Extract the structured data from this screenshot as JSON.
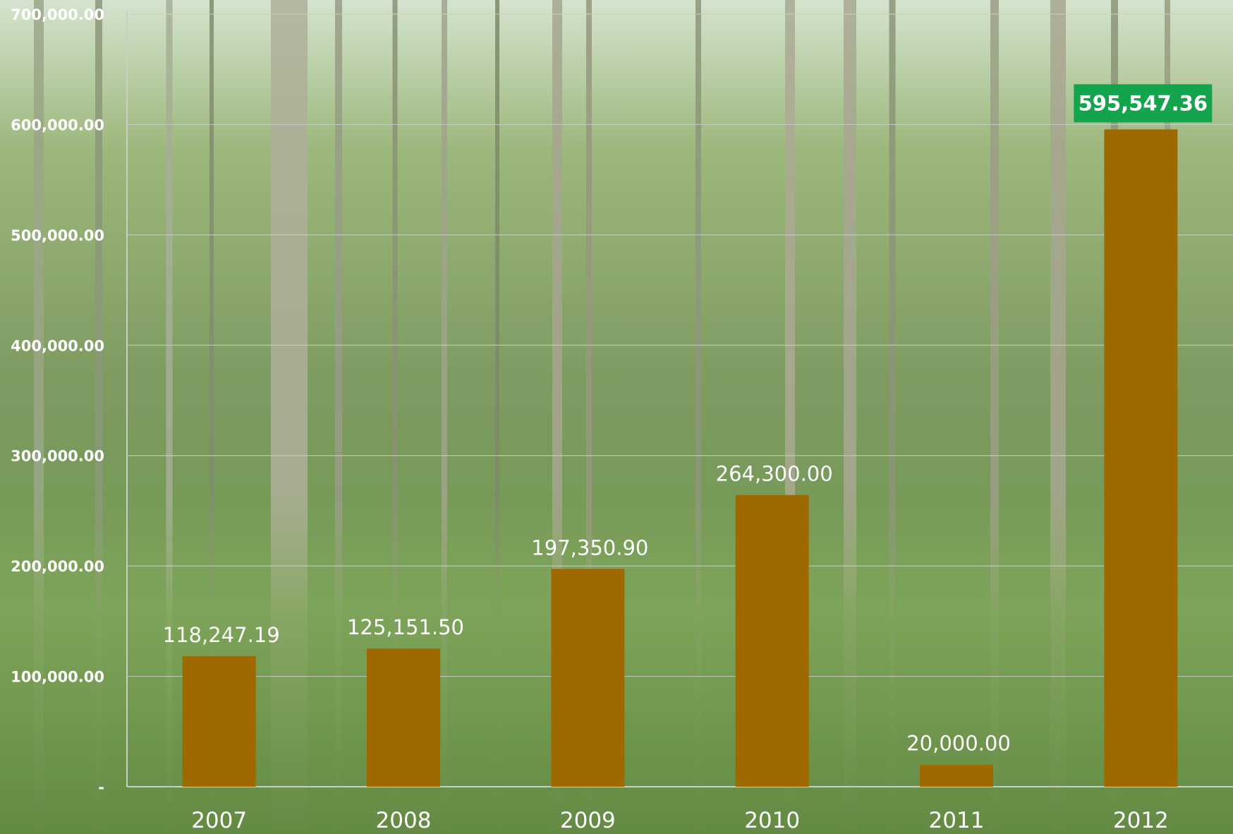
{
  "colors": {
    "bar": "#9E6A00",
    "highlight_label_bg": "#14A44D",
    "text": "#FFFFFF",
    "grid": "#C9CFC4"
  },
  "chart_data": {
    "type": "bar",
    "categories": [
      "2007",
      "2008",
      "2009",
      "2010",
      "2011",
      "2012"
    ],
    "values": [
      118247.19,
      125151.5,
      197350.9,
      264300.0,
      20000.0,
      595547.36
    ],
    "data_labels": [
      "118,247.19",
      "125,151.50",
      "197,350.90",
      "264,300.00",
      "20,000.00",
      "595,547.36"
    ],
    "highlighted_index": 5,
    "y_ticks": [
      {
        "value": 0,
        "label": "-"
      },
      {
        "value": 100000,
        "label": "100,000.00"
      },
      {
        "value": 200000,
        "label": "200,000.00"
      },
      {
        "value": 300000,
        "label": "300,000.00"
      },
      {
        "value": 400000,
        "label": "400,000.00"
      },
      {
        "value": 500000,
        "label": "500,000.00"
      },
      {
        "value": 600000,
        "label": "600,000.00"
      },
      {
        "value": 700000,
        "label": "700,000.00"
      }
    ],
    "ylim": [
      0,
      700000
    ],
    "grid": true,
    "background": "forest photo",
    "title": "",
    "xlabel": "",
    "ylabel": ""
  }
}
